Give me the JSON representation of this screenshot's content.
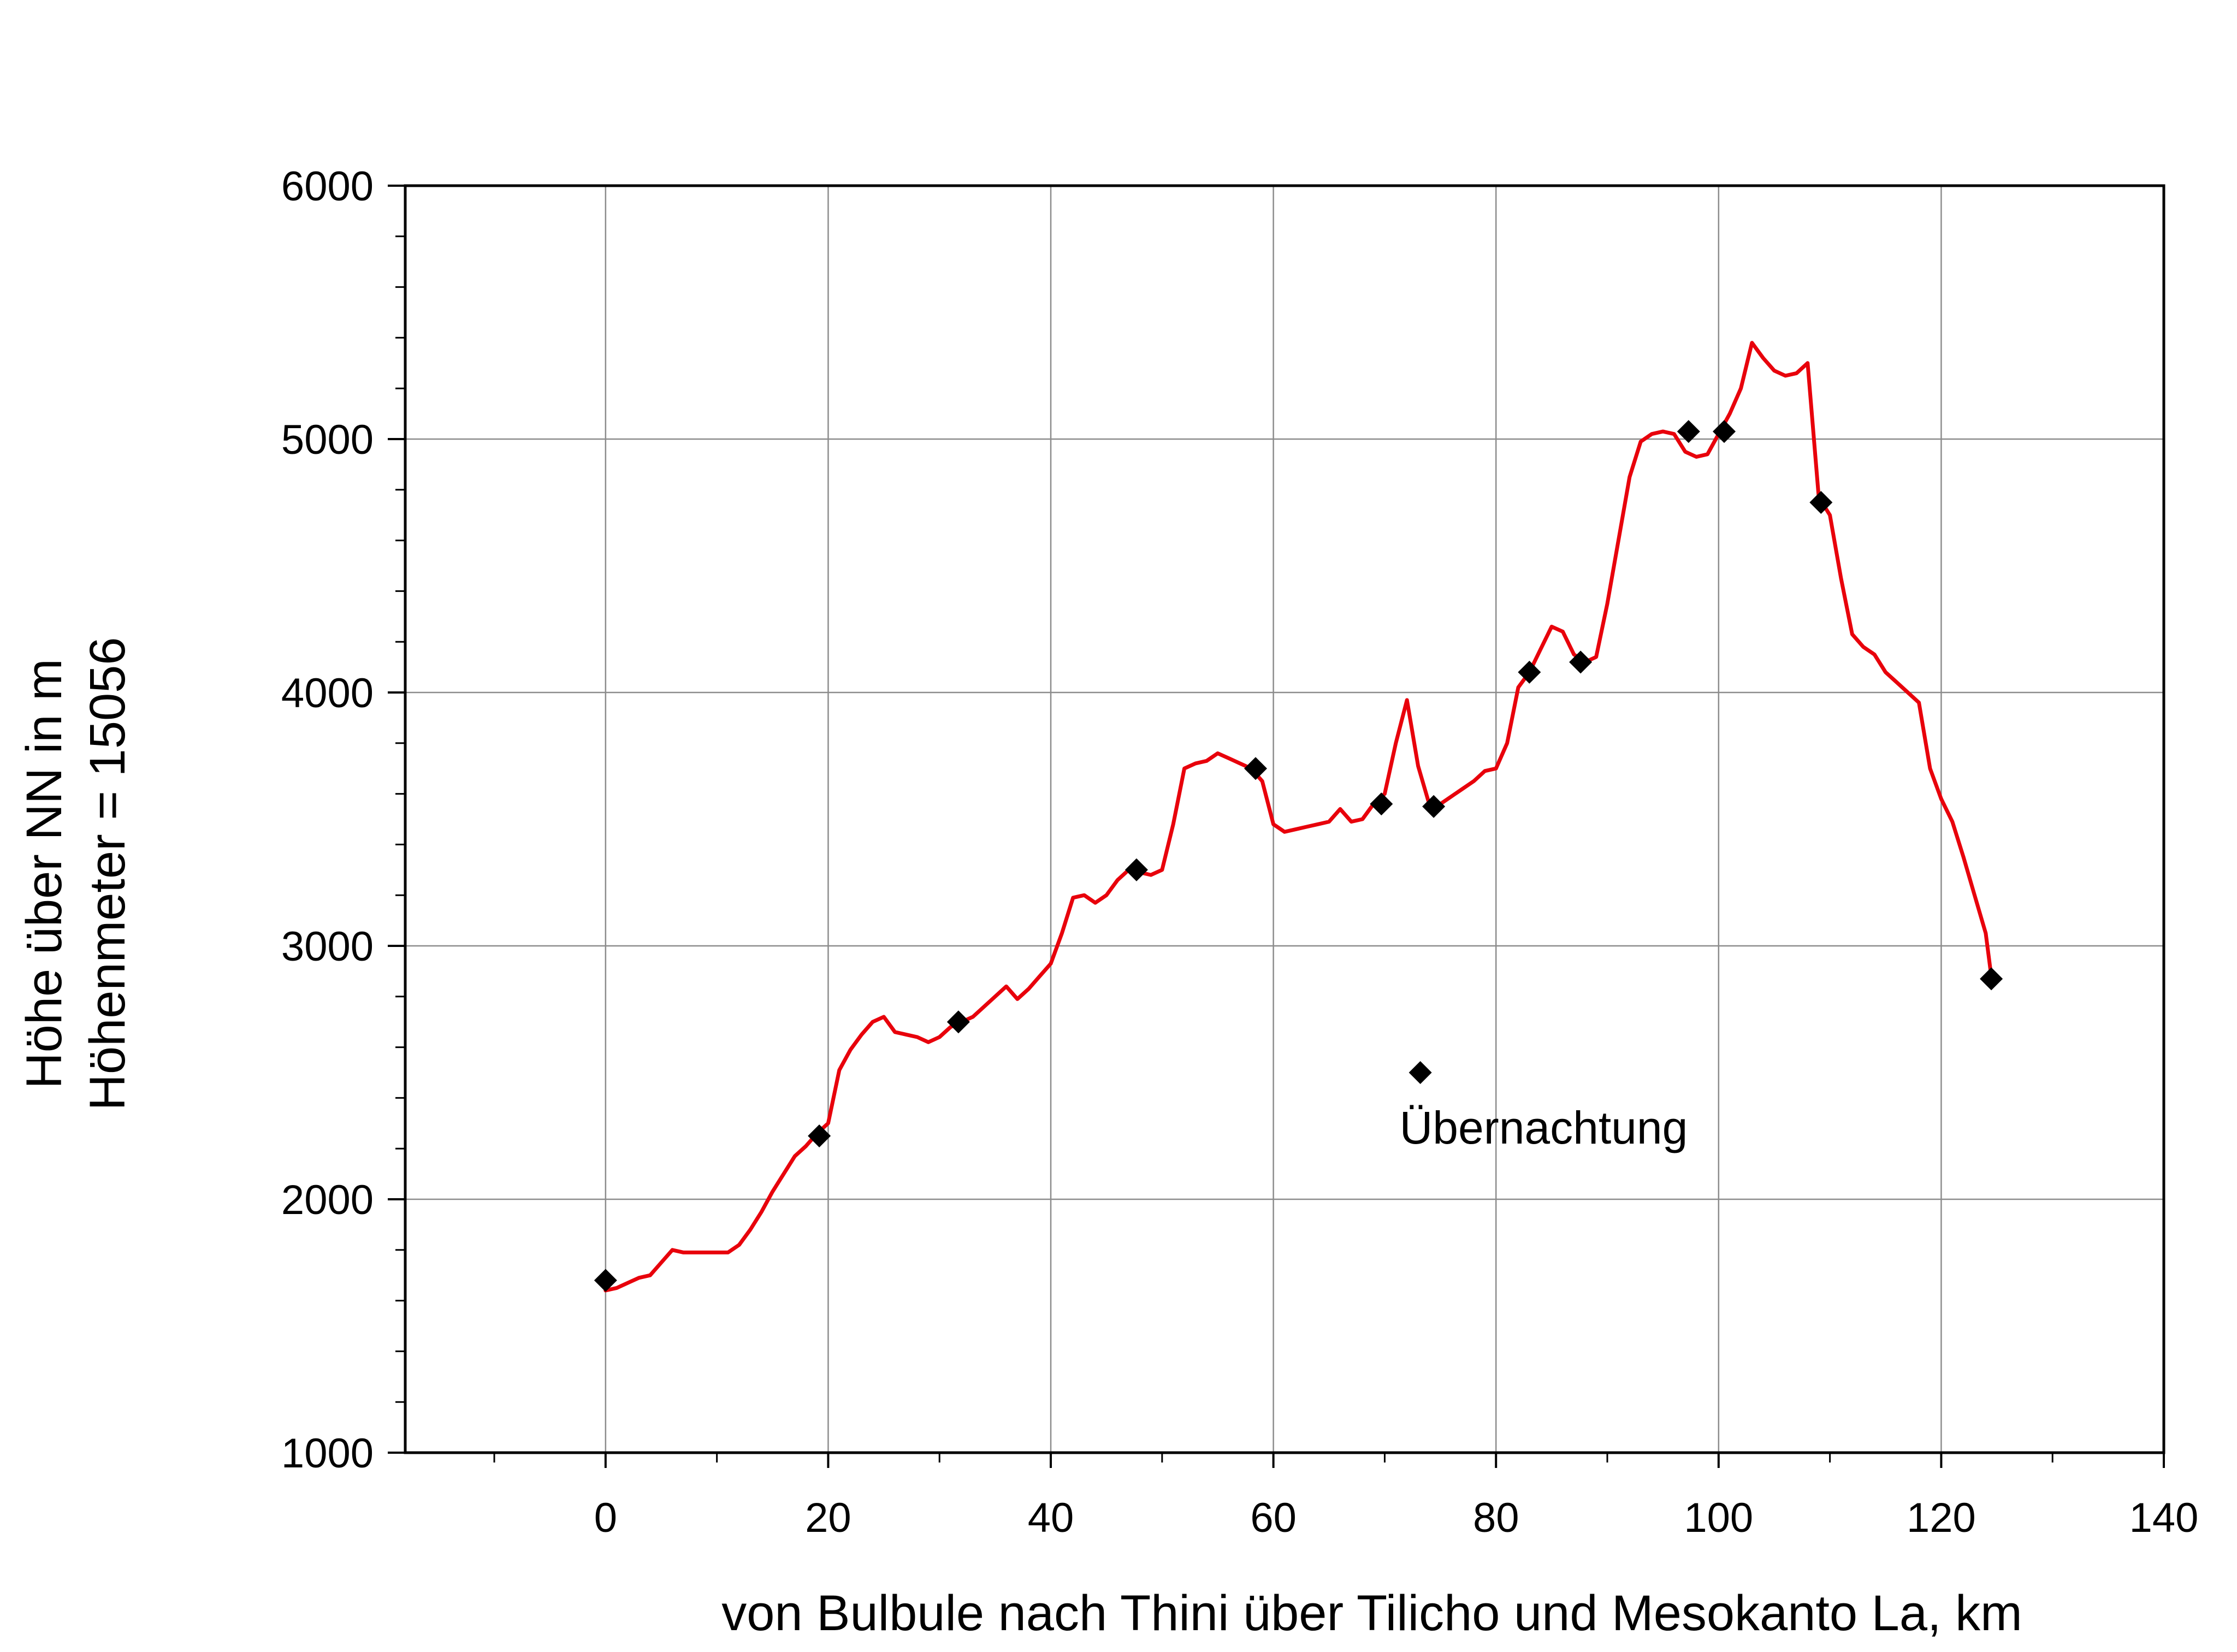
{
  "chart_data": {
    "type": "line",
    "xlabel": "von Bulbule nach Thini über Tilicho und Mesokanto La,  km",
    "ylabel_lines": [
      "Höhe über NN in m",
      "Höhenmeter = 15056"
    ],
    "xlim": [
      -18,
      140
    ],
    "ylim": [
      1000,
      6000
    ],
    "x_ticks": [
      0,
      20,
      40,
      60,
      80,
      100,
      120,
      140
    ],
    "y_ticks": [
      1000,
      2000,
      3000,
      4000,
      5000,
      6000
    ],
    "grid": true,
    "colors": {
      "profile": "#e8000b",
      "markers": "#000000"
    },
    "series": [
      {
        "kind": "line",
        "x": [
          0,
          1,
          2,
          3,
          4,
          5,
          6,
          7,
          8,
          9,
          10,
          11,
          12,
          13,
          14,
          15,
          16,
          17,
          18,
          19,
          20,
          21,
          22,
          23,
          24,
          25,
          26,
          27,
          28,
          29,
          30,
          31,
          32,
          33,
          34,
          35,
          36,
          37,
          38,
          39,
          40,
          41,
          42,
          43,
          44,
          45,
          46,
          47,
          48,
          49,
          50,
          51,
          52,
          53,
          54,
          55,
          56,
          57,
          58,
          59,
          60,
          61,
          62,
          63,
          64,
          65,
          66,
          67,
          68,
          69,
          70,
          71,
          72,
          73,
          74,
          75,
          76,
          77,
          78,
          79,
          80,
          81,
          82,
          83,
          84,
          85,
          86,
          87,
          88,
          89,
          90,
          91,
          92,
          93,
          94,
          95,
          96,
          97,
          98,
          99,
          100,
          101,
          102,
          103,
          104,
          105,
          106,
          107,
          108,
          109,
          110,
          111,
          112,
          113,
          114,
          115,
          116,
          117,
          118,
          119,
          120,
          121,
          122,
          123,
          124,
          124.5
        ],
        "y": [
          1640,
          1650,
          1670,
          1690,
          1700,
          1750,
          1800,
          1790,
          1790,
          1790,
          1790,
          1790,
          1820,
          1880,
          1950,
          2030,
          2100,
          2170,
          2210,
          2260,
          2300,
          2510,
          2590,
          2650,
          2700,
          2720,
          2660,
          2650,
          2640,
          2620,
          2640,
          2680,
          2700,
          2720,
          2760,
          2800,
          2840,
          2790,
          2830,
          2880,
          2930,
          3050,
          3190,
          3200,
          3170,
          3200,
          3260,
          3300,
          3290,
          3280,
          3300,
          3480,
          3700,
          3720,
          3730,
          3760,
          3740,
          3720,
          3700,
          3650,
          3480,
          3450,
          3460,
          3470,
          3480,
          3490,
          3540,
          3490,
          3500,
          3560,
          3600,
          3800,
          3970,
          3710,
          3560,
          3560,
          3590,
          3620,
          3650,
          3690,
          3700,
          3800,
          4020,
          4080,
          4170,
          4260,
          4240,
          4150,
          4120,
          4140,
          4350,
          4600,
          4850,
          4990,
          5020,
          5030,
          5020,
          4950,
          4930,
          4940,
          5020,
          5100,
          5200,
          5380,
          5320,
          5270,
          5250,
          5260,
          5300,
          4770,
          4700,
          4450,
          4230,
          4180,
          4150,
          4080,
          4040,
          4000,
          3960,
          3700,
          3580,
          3490,
          3350,
          3200,
          3050,
          2880
        ]
      },
      {
        "kind": "markers",
        "name": "Übernachtung",
        "x": [
          0,
          19.2,
          31.7,
          47.7,
          58.4,
          69.7,
          74.4,
          83,
          87.6,
          97.3,
          100.5,
          109.2,
          124.5
        ],
        "y": [
          1680,
          2250,
          2700,
          3300,
          3700,
          3560,
          3550,
          4080,
          4120,
          5030,
          5030,
          4750,
          2870
        ]
      }
    ],
    "legend": {
      "label": "Übernachtung",
      "marker_x": 73.2,
      "marker_y": 2500
    }
  }
}
